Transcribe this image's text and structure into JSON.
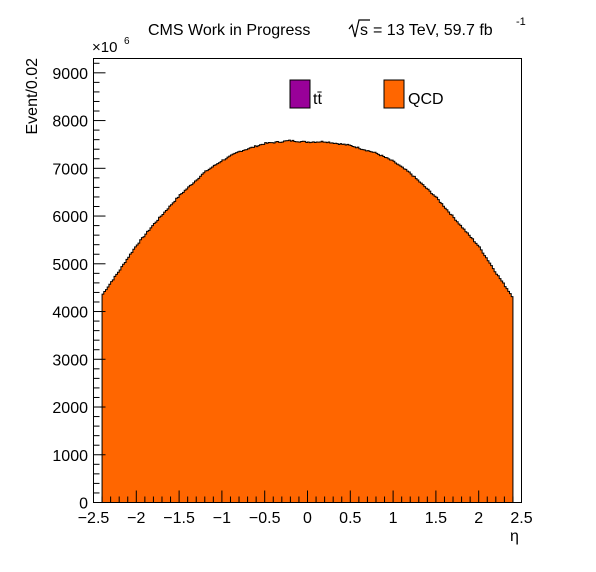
{
  "header": {
    "experiment": "CMS Work in Progress",
    "sqrt_s": "s",
    "energy_lumi": "= 13 TeV, 59.7 fb",
    "lumi_exponent": "-1"
  },
  "axes": {
    "ylabel": "Event/0.02",
    "xlabel": "η",
    "y_multiplier": "×10",
    "y_multiplier_exp": "6"
  },
  "legend": {
    "ttbar_label": "tt̄",
    "qcd_label": "QCD",
    "ttbar_color": "#990099",
    "qcd_color": "#ff6600"
  },
  "chart_data": {
    "type": "bar",
    "title": "CMS Work in Progress  √s = 13 TeV, 59.7 fb⁻¹",
    "xlabel": "η",
    "ylabel": "Event/0.02",
    "y_scale_factor": 1000000,
    "xlim": [
      -2.5,
      2.5
    ],
    "ylim": [
      0,
      9300
    ],
    "grid": false,
    "legend_position": "top",
    "stacked": true,
    "bin_width": 0.02,
    "x_ticks": [
      "−2.5",
      "−2",
      "−1.5",
      "−1",
      "−0.5",
      "0",
      "0.5",
      "1",
      "1.5",
      "2",
      "2.5"
    ],
    "x_tick_values": [
      -2.5,
      -2,
      -1.5,
      -1,
      -0.5,
      0,
      0.5,
      1,
      1.5,
      2,
      2.5
    ],
    "y_ticks": [
      "0",
      "1000",
      "2000",
      "3000",
      "4000",
      "5000",
      "6000",
      "7000",
      "8000",
      "9000"
    ],
    "y_tick_values": [
      0,
      1000,
      2000,
      3000,
      4000,
      5000,
      6000,
      7000,
      8000,
      9000
    ],
    "series": [
      {
        "name": "tt̄",
        "color": "#990099",
        "x": [
          -2.4,
          -2.0,
          -1.5,
          -1.0,
          -0.5,
          0.0,
          0.5,
          1.0,
          1.5,
          2.0,
          2.4
        ],
        "values": [
          0,
          0,
          0,
          0,
          0,
          0,
          0,
          0,
          0,
          0,
          0
        ]
      },
      {
        "name": "QCD",
        "color": "#ff6600",
        "x": [
          -2.4,
          -2.3,
          -2.2,
          -2.1,
          -2.0,
          -1.8,
          -1.5,
          -1.2,
          -1.0,
          -0.8,
          -0.5,
          -0.2,
          0.0,
          0.2,
          0.5,
          0.8,
          1.0,
          1.2,
          1.5,
          1.8,
          2.0,
          2.1,
          2.2,
          2.3,
          2.4
        ],
        "values": [
          4340,
          4600,
          4850,
          5120,
          5380,
          5820,
          6420,
          6920,
          7160,
          7350,
          7520,
          7580,
          7550,
          7560,
          7480,
          7320,
          7150,
          6900,
          6400,
          5780,
          5370,
          5100,
          4820,
          4560,
          4300
        ]
      }
    ]
  }
}
